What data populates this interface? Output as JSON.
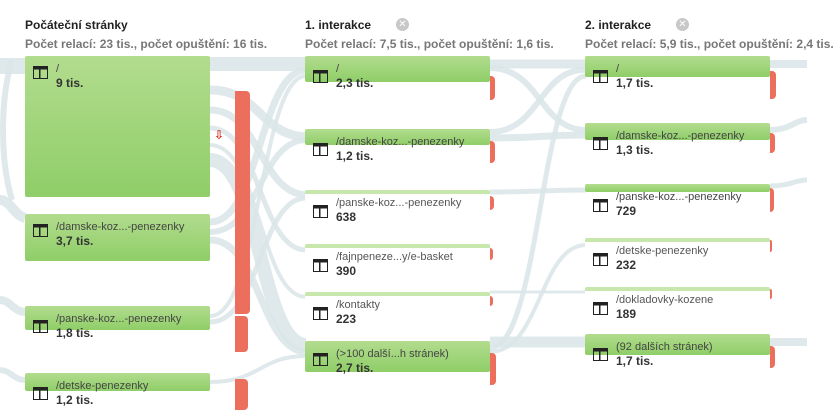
{
  "columns": [
    {
      "title": "Počáteční stránky",
      "subtitle": "Počet relací: 23 tis., počet opuštění: 16 tis."
    },
    {
      "title": "1. interakce",
      "subtitle": "Počet relací: 7,5 tis., počet opuštění: 1,6 tis.",
      "close_icon": "close-circle-icon"
    },
    {
      "title": "2. interakce",
      "subtitle": "Počet relací: 5,9 tis., počet opuštění: 2,4 tis.",
      "close_icon": "close-circle-icon"
    }
  ],
  "nodes": {
    "c0": [
      {
        "path": "/",
        "count": "9 tis."
      },
      {
        "path": "/damske-koz...-penezenky",
        "count": "3,7 tis."
      },
      {
        "path": "/panske-koz...-penezenky",
        "count": "1,8 tis."
      },
      {
        "path": "/detske-penezenky",
        "count": "1,2 tis."
      }
    ],
    "c1": [
      {
        "path": "/",
        "count": "2,3 tis."
      },
      {
        "path": "/damske-koz...-penezenky",
        "count": "1,2 tis."
      },
      {
        "path": "/panske-koz...-penezenky",
        "count": "638"
      },
      {
        "path": "/fajnpeneze...y/e-basket",
        "count": "390"
      },
      {
        "path": "/kontakty",
        "count": "223"
      },
      {
        "path": "(>100 další...h stránek)",
        "count": "2,7 tis."
      }
    ],
    "c2": [
      {
        "path": "/",
        "count": "1,7 tis."
      },
      {
        "path": "/damske-koz...-penezenky",
        "count": "1,3 tis."
      },
      {
        "path": "/panske-koz...-penezenky",
        "count": "729"
      },
      {
        "path": "/detske-penezenky",
        "count": "232"
      },
      {
        "path": "/dokladovky-kozene",
        "count": "189"
      },
      {
        "path": "(92 dalších stránek)",
        "count": "1,7 tis."
      }
    ]
  },
  "icons": {
    "page": "page-layout-icon",
    "dropoff": "dropoff-arrow-icon"
  },
  "colors": {
    "node_green": "#9bd275",
    "dropoff_red": "#ec6e5d",
    "flow": "#d9e5e8"
  }
}
